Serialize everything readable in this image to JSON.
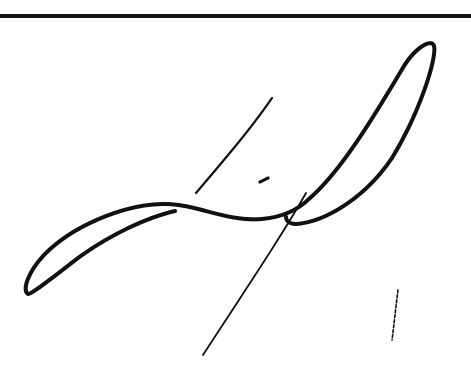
{
  "document": {
    "kind": "signature-fragment",
    "ink_color": "#111111",
    "paper_color": "#ffffff"
  }
}
